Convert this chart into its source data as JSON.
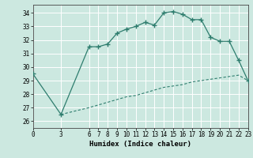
{
  "xlabel": "Humidex (Indice chaleur)",
  "bg_color": "#cce8e0",
  "grid_color": "#ffffff",
  "line_color": "#2e7d6e",
  "xlim": [
    0,
    23
  ],
  "ylim": [
    25.5,
    34.6
  ],
  "xticks": [
    0,
    3,
    6,
    7,
    8,
    9,
    10,
    11,
    12,
    13,
    14,
    15,
    16,
    17,
    18,
    19,
    20,
    21,
    22,
    23
  ],
  "yticks": [
    26,
    27,
    28,
    29,
    30,
    31,
    32,
    33,
    34
  ],
  "main_x": [
    0,
    3,
    6,
    7,
    8,
    9,
    10,
    11,
    12,
    13,
    14,
    15,
    16,
    17,
    18,
    19,
    20,
    21,
    22,
    23
  ],
  "main_y": [
    29.5,
    26.5,
    31.5,
    31.5,
    31.7,
    32.5,
    32.8,
    33.0,
    33.3,
    33.1,
    34.0,
    34.1,
    33.9,
    33.5,
    33.5,
    32.2,
    31.9,
    31.9,
    30.5,
    29.0
  ],
  "dashed_x": [
    3,
    6,
    7,
    8,
    9,
    10,
    11,
    12,
    13,
    14,
    15,
    16,
    17,
    18,
    19,
    20,
    21,
    22,
    23
  ],
  "dashed_y": [
    26.5,
    27.0,
    27.2,
    27.4,
    27.6,
    27.8,
    27.9,
    28.1,
    28.3,
    28.5,
    28.6,
    28.7,
    28.9,
    29.0,
    29.1,
    29.2,
    29.3,
    29.4,
    29.0
  ]
}
